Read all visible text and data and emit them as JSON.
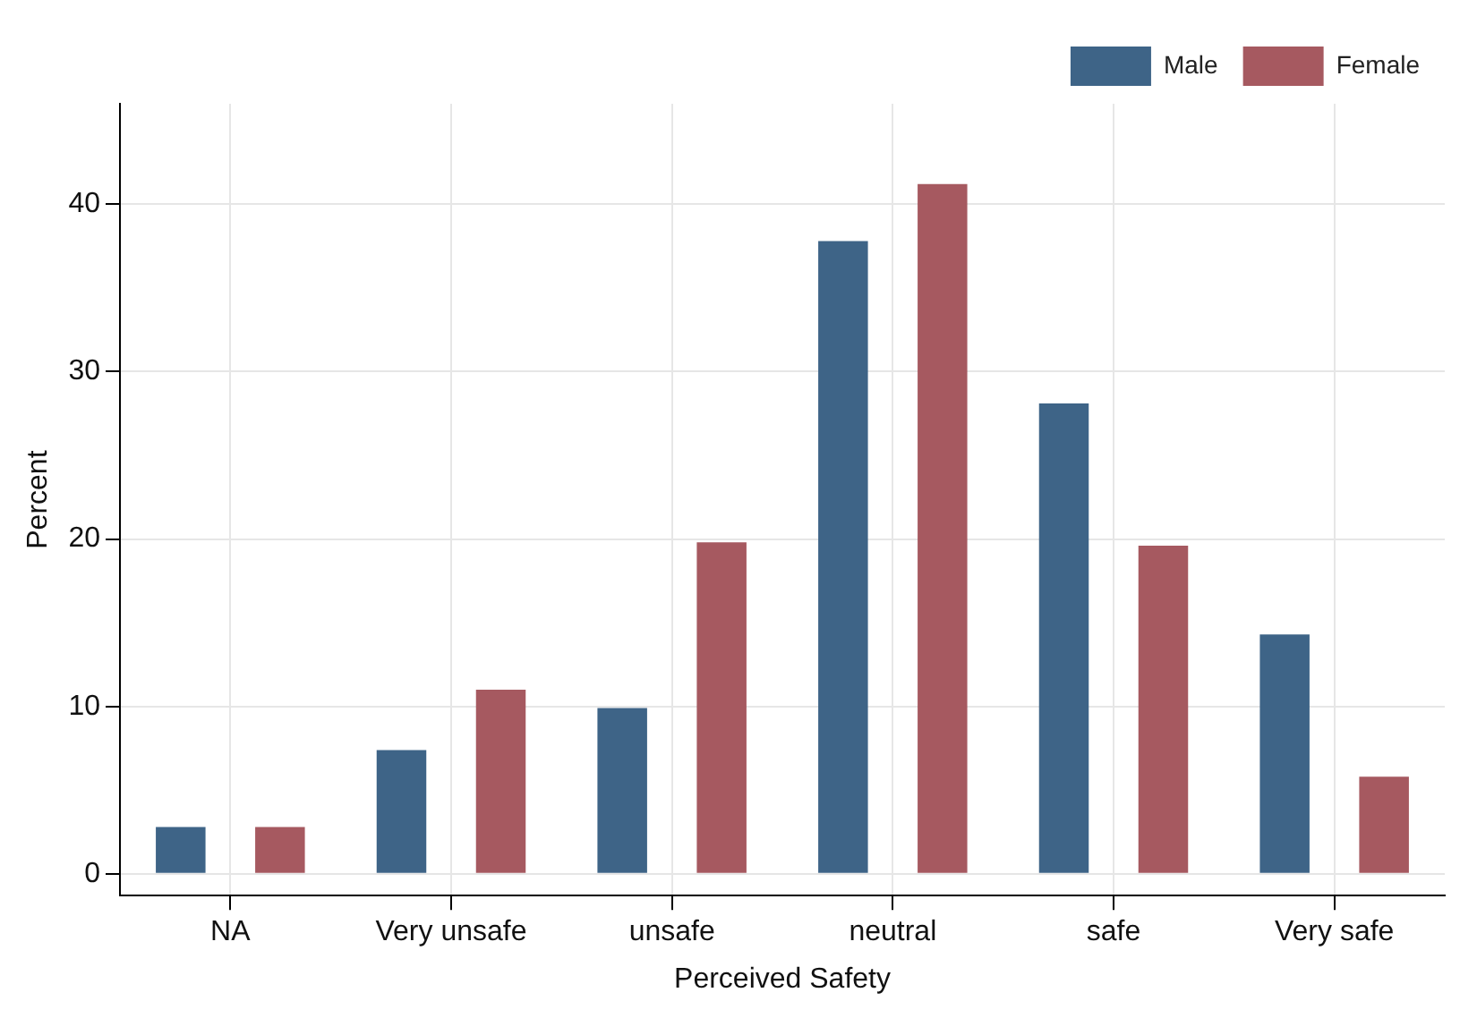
{
  "chart_data": {
    "type": "bar",
    "xlabel": "Perceived Safety",
    "ylabel": "Percent",
    "categories": [
      "NA",
      "Very unsafe",
      "unsafe",
      "neutral",
      "safe",
      "Very safe"
    ],
    "series": [
      {
        "name": "Male",
        "color": "#3e6487",
        "values": [
          2.8,
          7.4,
          9.9,
          37.8,
          28.1,
          14.3
        ]
      },
      {
        "name": "Female",
        "color": "#a65960",
        "values": [
          2.8,
          11,
          19.8,
          41.2,
          19.6,
          5.8
        ]
      }
    ],
    "ylim": [
      -1.3,
      46
    ],
    "yticks": [
      0,
      10,
      20,
      30,
      40
    ],
    "grid": true,
    "legend": "top right"
  }
}
